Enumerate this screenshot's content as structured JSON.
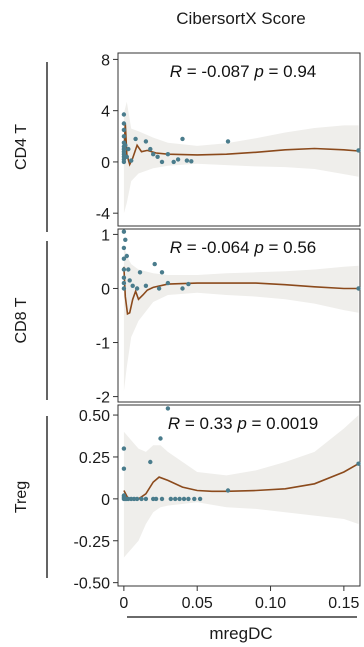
{
  "chart_data": {
    "type": "scatter",
    "title": "CibersortX Score",
    "xlabel": "mregDC",
    "x_ticks": [
      "0",
      "0.05",
      "0.10",
      "0.15"
    ],
    "x_tick_values": [
      0,
      0.05,
      0.1,
      0.15
    ],
    "xlim": [
      -0.004,
      0.161
    ],
    "colors": {
      "point": "#4a7c8c",
      "smooth": "#8b4a1c",
      "band": "#efeeeb"
    },
    "grid": false,
    "panels": [
      {
        "ylabel": "CD4 T",
        "annotation": {
          "r_label": "R",
          "r_value": "= -0.087",
          "p_label": "p",
          "p_value": "= 0.94"
        },
        "ylim": [
          -5,
          8.5
        ],
        "y_ticks": [
          "8",
          "4",
          "0",
          "-4"
        ],
        "y_tick_values": [
          8,
          4,
          0,
          -4
        ],
        "points": [
          [
            0,
            0
          ],
          [
            0,
            0.2
          ],
          [
            0,
            0.4
          ],
          [
            0,
            0.6
          ],
          [
            0,
            0.8
          ],
          [
            0,
            1.0
          ],
          [
            0,
            1.2
          ],
          [
            0,
            1.5
          ],
          [
            0,
            2.0
          ],
          [
            0,
            2.5
          ],
          [
            0,
            3.0
          ],
          [
            0,
            3.7
          ],
          [
            0.001,
            1.3
          ],
          [
            0.002,
            0.4
          ],
          [
            0.003,
            1.0
          ],
          [
            0.005,
            0.1
          ],
          [
            0.008,
            1.8
          ],
          [
            0.015,
            1.6
          ],
          [
            0.018,
            1.0
          ],
          [
            0.02,
            0.6
          ],
          [
            0.023,
            0.4
          ],
          [
            0.026,
            0
          ],
          [
            0.03,
            0.6
          ],
          [
            0.034,
            0
          ],
          [
            0.037,
            0.2
          ],
          [
            0.04,
            1.8
          ],
          [
            0.043,
            0.1
          ],
          [
            0.046,
            0.05
          ],
          [
            0.071,
            1.6
          ],
          [
            0.16,
            0.9
          ]
        ],
        "smooth": [
          [
            0,
            0.6
          ],
          [
            0.001,
            3.0
          ],
          [
            0.002,
            0.6
          ],
          [
            0.004,
            -0.2
          ],
          [
            0.006,
            0.3
          ],
          [
            0.009,
            1.3
          ],
          [
            0.012,
            0.8
          ],
          [
            0.016,
            0.9
          ],
          [
            0.022,
            0.7
          ],
          [
            0.03,
            0.6
          ],
          [
            0.05,
            0.55
          ],
          [
            0.07,
            0.6
          ],
          [
            0.09,
            0.75
          ],
          [
            0.11,
            0.95
          ],
          [
            0.13,
            1.05
          ],
          [
            0.15,
            0.95
          ],
          [
            0.16,
            0.85
          ]
        ],
        "band": [
          [
            0,
            -4.0,
            3.8
          ],
          [
            0.002,
            -3.2,
            4.7
          ],
          [
            0.005,
            -1.5,
            2.6
          ],
          [
            0.01,
            -0.9,
            2.4
          ],
          [
            0.02,
            -0.5,
            1.9
          ],
          [
            0.03,
            -0.3,
            1.5
          ],
          [
            0.05,
            -0.15,
            1.25
          ],
          [
            0.07,
            -0.25,
            1.45
          ],
          [
            0.09,
            -0.35,
            1.85
          ],
          [
            0.11,
            -0.4,
            2.3
          ],
          [
            0.13,
            -0.55,
            2.65
          ],
          [
            0.15,
            -0.95,
            2.85
          ],
          [
            0.16,
            -1.15,
            2.85
          ]
        ]
      },
      {
        "ylabel": "CD8 T",
        "annotation": {
          "r_label": "R",
          "r_value": "= -0.064",
          "p_label": "p",
          "p_value": "= 0.56"
        },
        "ylim": [
          -2.1,
          1.1
        ],
        "y_ticks": [
          "1",
          "0",
          "-1",
          "-2"
        ],
        "y_tick_values": [
          1,
          0,
          -1,
          -2
        ],
        "points": [
          [
            0,
            0
          ],
          [
            0,
            0.1
          ],
          [
            0,
            0.2
          ],
          [
            0,
            0.35
          ],
          [
            0,
            0.55
          ],
          [
            0,
            0.75
          ],
          [
            0,
            1.05
          ],
          [
            0.001,
            0.9
          ],
          [
            0.002,
            0.6
          ],
          [
            0.003,
            0.35
          ],
          [
            0.004,
            0.15
          ],
          [
            0.006,
            0.05
          ],
          [
            0.009,
            0.0
          ],
          [
            0.011,
            0.3
          ],
          [
            0.015,
            0.05
          ],
          [
            0.021,
            0.45
          ],
          [
            0.024,
            0.0
          ],
          [
            0.026,
            0.3
          ],
          [
            0.03,
            0.1
          ],
          [
            0.04,
            0.0
          ],
          [
            0.044,
            0.08
          ],
          [
            0.16,
            0.0
          ]
        ],
        "smooth": [
          [
            0,
            0.4
          ],
          [
            0.001,
            -0.15
          ],
          [
            0.0025,
            -0.47
          ],
          [
            0.004,
            -0.45
          ],
          [
            0.006,
            -0.2
          ],
          [
            0.008,
            -0.05
          ],
          [
            0.01,
            -0.2
          ],
          [
            0.013,
            -0.12
          ],
          [
            0.016,
            -0.03
          ],
          [
            0.02,
            0.02
          ],
          [
            0.03,
            0.08
          ],
          [
            0.05,
            0.1
          ],
          [
            0.07,
            0.1
          ],
          [
            0.09,
            0.1
          ],
          [
            0.11,
            0.07
          ],
          [
            0.13,
            0.03
          ],
          [
            0.15,
            0.0
          ],
          [
            0.16,
            0.0
          ]
        ],
        "band": [
          [
            0,
            -1.9,
            0.8
          ],
          [
            0.002,
            -1.45,
            0.6
          ],
          [
            0.005,
            -0.9,
            0.45
          ],
          [
            0.01,
            -0.6,
            0.35
          ],
          [
            0.02,
            -0.25,
            0.28
          ],
          [
            0.03,
            -0.12,
            0.25
          ],
          [
            0.05,
            -0.08,
            0.25
          ],
          [
            0.07,
            -0.12,
            0.28
          ],
          [
            0.09,
            -0.15,
            0.3
          ],
          [
            0.11,
            -0.2,
            0.32
          ],
          [
            0.13,
            -0.28,
            0.35
          ],
          [
            0.15,
            -0.4,
            0.4
          ],
          [
            0.16,
            -0.45,
            0.42
          ]
        ]
      },
      {
        "ylabel": "Treg",
        "annotation": {
          "r_label": "R",
          "r_value": "= 0.33",
          "p_label": "p",
          "p_value": "= 0.0019"
        },
        "ylim": [
          -0.52,
          0.56
        ],
        "y_ticks": [
          "0.50",
          "0.25",
          "0",
          "-0.25",
          "-0.50"
        ],
        "y_tick_values": [
          0.5,
          0.25,
          0,
          -0.25,
          -0.5
        ],
        "points": [
          [
            0,
            0
          ],
          [
            0,
            0.01
          ],
          [
            0,
            0.02
          ],
          [
            0,
            0.18
          ],
          [
            0,
            0.3
          ],
          [
            0.001,
            0.0
          ],
          [
            0.002,
            0.0
          ],
          [
            0.003,
            0.0
          ],
          [
            0.005,
            0.0
          ],
          [
            0.007,
            0.0
          ],
          [
            0.009,
            0.0
          ],
          [
            0.012,
            0.0
          ],
          [
            0.015,
            0.0
          ],
          [
            0.018,
            0.22
          ],
          [
            0.02,
            0.0
          ],
          [
            0.022,
            0.0
          ],
          [
            0.025,
            0.36
          ],
          [
            0.026,
            0.0
          ],
          [
            0.03,
            0.54
          ],
          [
            0.032,
            0.0
          ],
          [
            0.035,
            0.0
          ],
          [
            0.038,
            0.0
          ],
          [
            0.041,
            0.0
          ],
          [
            0.044,
            0.0
          ],
          [
            0.048,
            0.0
          ],
          [
            0.052,
            0.0
          ],
          [
            0.071,
            0.05
          ],
          [
            0.16,
            0.21
          ]
        ],
        "smooth": [
          [
            0,
            0.05
          ],
          [
            0.003,
            0.0
          ],
          [
            0.006,
            0.0
          ],
          [
            0.01,
            0.0
          ],
          [
            0.015,
            0.03
          ],
          [
            0.02,
            0.1
          ],
          [
            0.024,
            0.13
          ],
          [
            0.03,
            0.11
          ],
          [
            0.04,
            0.07
          ],
          [
            0.05,
            0.05
          ],
          [
            0.06,
            0.045
          ],
          [
            0.07,
            0.045
          ],
          [
            0.09,
            0.05
          ],
          [
            0.11,
            0.06
          ],
          [
            0.13,
            0.09
          ],
          [
            0.15,
            0.16
          ],
          [
            0.16,
            0.21
          ]
        ],
        "band": [
          [
            0,
            -0.35,
            0.4
          ],
          [
            0.005,
            -0.3,
            0.35
          ],
          [
            0.01,
            -0.25,
            0.3
          ],
          [
            0.015,
            -0.15,
            0.28
          ],
          [
            0.02,
            -0.08,
            0.32
          ],
          [
            0.025,
            -0.05,
            0.32
          ],
          [
            0.03,
            -0.04,
            0.28
          ],
          [
            0.05,
            -0.02,
            0.16
          ],
          [
            0.07,
            -0.05,
            0.14
          ],
          [
            0.09,
            -0.06,
            0.17
          ],
          [
            0.11,
            -0.08,
            0.22
          ],
          [
            0.13,
            -0.1,
            0.28
          ],
          [
            0.15,
            -0.12,
            0.42
          ],
          [
            0.16,
            -0.15,
            0.5
          ]
        ]
      }
    ]
  }
}
